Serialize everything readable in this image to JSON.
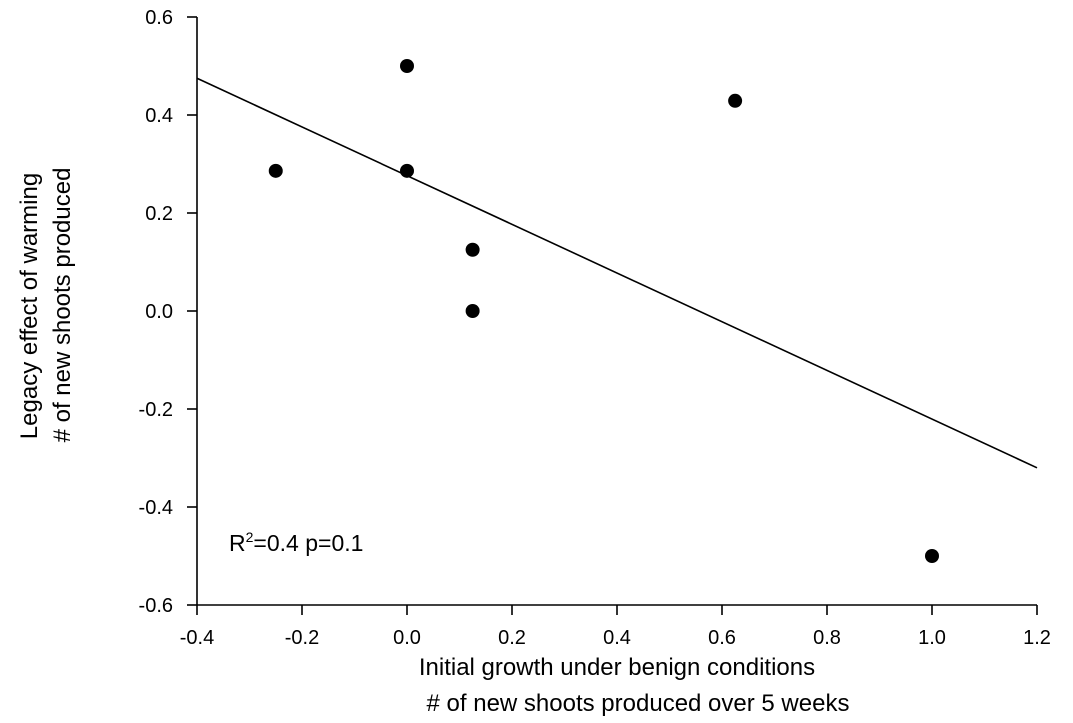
{
  "chart_data": {
    "type": "scatter",
    "title": "",
    "xlabel": [
      "Initial growth under benign conditions",
      "# of new shoots produced over 5 weeks"
    ],
    "ylabel": [
      "Legacy effect of warming",
      "# of new shoots produced"
    ],
    "xlim": [
      -0.4,
      1.2
    ],
    "ylim": [
      -0.6,
      0.6
    ],
    "xticks": [
      -0.4,
      -0.2,
      0.0,
      0.2,
      0.4,
      0.6,
      0.8,
      1.0,
      1.2
    ],
    "yticks": [
      -0.6,
      -0.4,
      -0.2,
      0.0,
      0.2,
      0.4,
      0.6
    ],
    "xtick_labels": [
      "-0.4",
      "-0.2",
      "0.0",
      "0.2",
      "0.4",
      "0.6",
      "0.8",
      "1.0",
      "1.2"
    ],
    "ytick_labels": [
      "-0.6",
      "-0.4",
      "-0.2",
      "0.0",
      "0.2",
      "0.4",
      "0.6"
    ],
    "grid": false,
    "points": [
      {
        "x": -0.25,
        "y": 0.286
      },
      {
        "x": 0.0,
        "y": 0.5
      },
      {
        "x": 0.0,
        "y": 0.286
      },
      {
        "x": 0.125,
        "y": 0.125
      },
      {
        "x": 0.125,
        "y": 0.0
      },
      {
        "x": 0.625,
        "y": 0.429
      },
      {
        "x": 1.0,
        "y": -0.5
      }
    ],
    "fit_line": {
      "x": [
        -0.4,
        1.2
      ],
      "y": [
        0.475,
        -0.32
      ]
    },
    "annotation": {
      "base": "R",
      "superscript": "2",
      "rest": "=0.4 p=0.1"
    },
    "colors": {
      "marker": "#000000",
      "line": "#000000",
      "axis": "#000000"
    }
  }
}
